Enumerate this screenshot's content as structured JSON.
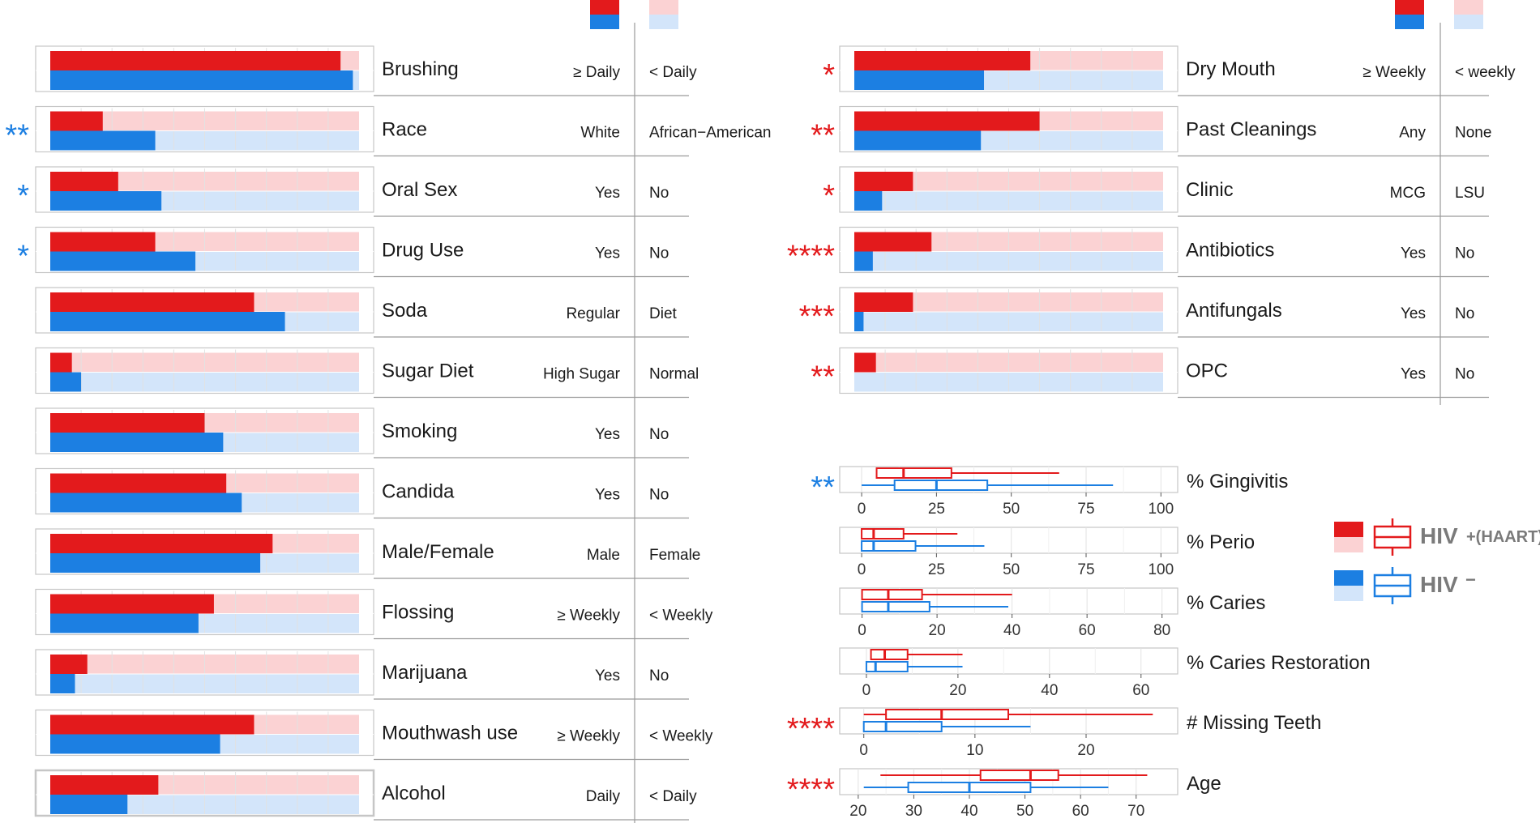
{
  "colors": {
    "hiv_pos_dark": "#e31a1c",
    "hiv_pos_light": "#fbd2d3",
    "hiv_neg_dark": "#1c7fe2",
    "hiv_neg_light": "#d3e5fa",
    "star_red": "#e31a1c",
    "star_blue": "#1c7fe2",
    "grid": "#e2e2e2",
    "frame": "#c6c6c6",
    "text": "#1a1a1a",
    "legend_text": "#7a7a7a"
  },
  "chart_data": [
    {
      "type": "bar",
      "panel": "categorical-left",
      "value_range": [
        0,
        1
      ],
      "series_names": [
        "HIV+(HAART)",
        "HIV-"
      ],
      "rows": [
        {
          "label": "Brushing",
          "level_a": "≥ Daily",
          "level_b": "< Daily",
          "hiv_pos": 0.94,
          "hiv_neg": 0.98,
          "stars": "",
          "star_color": ""
        },
        {
          "label": "Race",
          "level_a": "White",
          "level_b": "African−American",
          "hiv_pos": 0.17,
          "hiv_neg": 0.34,
          "stars": "**",
          "star_color": "blue"
        },
        {
          "label": "Oral Sex",
          "level_a": "Yes",
          "level_b": "No",
          "hiv_pos": 0.22,
          "hiv_neg": 0.36,
          "stars": "*",
          "star_color": "blue"
        },
        {
          "label": "Drug Use",
          "level_a": "Yes",
          "level_b": "No",
          "hiv_pos": 0.34,
          "hiv_neg": 0.47,
          "stars": "*",
          "star_color": "blue"
        },
        {
          "label": "Soda",
          "level_a": "Regular",
          "level_b": "Diet",
          "hiv_pos": 0.66,
          "hiv_neg": 0.76,
          "stars": "",
          "star_color": ""
        },
        {
          "label": "Sugar Diet",
          "level_a": "High Sugar",
          "level_b": "Normal",
          "hiv_pos": 0.07,
          "hiv_neg": 0.1,
          "stars": "",
          "star_color": ""
        },
        {
          "label": "Smoking",
          "level_a": "Yes",
          "level_b": "No",
          "hiv_pos": 0.5,
          "hiv_neg": 0.56,
          "stars": "",
          "star_color": ""
        },
        {
          "label": "Candida",
          "level_a": "Yes",
          "level_b": "No",
          "hiv_pos": 0.57,
          "hiv_neg": 0.62,
          "stars": "",
          "star_color": ""
        },
        {
          "label": "Male/Female",
          "level_a": "Male",
          "level_b": "Female",
          "hiv_pos": 0.72,
          "hiv_neg": 0.68,
          "stars": "",
          "star_color": ""
        },
        {
          "label": "Flossing",
          "level_a": "≥ Weekly",
          "level_b": "< Weekly",
          "hiv_pos": 0.53,
          "hiv_neg": 0.48,
          "stars": "",
          "star_color": ""
        },
        {
          "label": "Marijuana",
          "level_a": "Yes",
          "level_b": "No",
          "hiv_pos": 0.12,
          "hiv_neg": 0.08,
          "stars": "",
          "star_color": ""
        },
        {
          "label": "Mouthwash use",
          "level_a": "≥ Weekly",
          "level_b": "< Weekly",
          "hiv_pos": 0.66,
          "hiv_neg": 0.55,
          "stars": "",
          "star_color": ""
        },
        {
          "label": "Alcohol",
          "level_a": "Daily",
          "level_b": "< Daily",
          "hiv_pos": 0.35,
          "hiv_neg": 0.25,
          "stars": "",
          "star_color": ""
        }
      ]
    },
    {
      "type": "bar",
      "panel": "categorical-right",
      "value_range": [
        0,
        1
      ],
      "series_names": [
        "HIV+(HAART)",
        "HIV-"
      ],
      "rows": [
        {
          "label": "Dry Mouth",
          "level_a": "≥ Weekly",
          "level_b": "< weekly",
          "hiv_pos": 0.57,
          "hiv_neg": 0.42,
          "stars": "*",
          "star_color": "red"
        },
        {
          "label": "Past Cleanings",
          "level_a": "Any",
          "level_b": "None",
          "hiv_pos": 0.6,
          "hiv_neg": 0.41,
          "stars": "**",
          "star_color": "red"
        },
        {
          "label": "Clinic",
          "level_a": "MCG",
          "level_b": "LSU",
          "hiv_pos": 0.19,
          "hiv_neg": 0.09,
          "stars": "*",
          "star_color": "red"
        },
        {
          "label": "Antibiotics",
          "level_a": "Yes",
          "level_b": "No",
          "hiv_pos": 0.25,
          "hiv_neg": 0.06,
          "stars": "****",
          "star_color": "red"
        },
        {
          "label": "Antifungals",
          "level_a": "Yes",
          "level_b": "No",
          "hiv_pos": 0.19,
          "hiv_neg": 0.03,
          "stars": "***",
          "star_color": "red"
        },
        {
          "label": "OPC",
          "level_a": "Yes",
          "level_b": "No",
          "hiv_pos": 0.07,
          "hiv_neg": 0.0,
          "stars": "**",
          "star_color": "red"
        }
      ]
    },
    {
      "type": "box",
      "panel": "continuous",
      "series_names": [
        "HIV+(HAART)",
        "HIV-"
      ],
      "rows": [
        {
          "label": "% Gingivitis",
          "stars": "**",
          "star_color": "blue",
          "xlim": [
            -3,
            101
          ],
          "ticks": [
            0,
            25,
            50,
            75,
            100
          ],
          "hiv_pos": {
            "min": 5,
            "q1": 5,
            "median": 14,
            "q3": 30,
            "max": 66
          },
          "hiv_neg": {
            "min": 0,
            "q1": 11,
            "median": 25,
            "q3": 42,
            "max": 84
          }
        },
        {
          "label": "% Perio",
          "stars": "",
          "star_color": "",
          "xlim": [
            -3,
            101
          ],
          "ticks": [
            0,
            25,
            50,
            75,
            100
          ],
          "hiv_pos": {
            "min": 0,
            "q1": 0,
            "median": 4,
            "q3": 14,
            "max": 32
          },
          "hiv_neg": {
            "min": 0,
            "q1": 0,
            "median": 4,
            "q3": 18,
            "max": 41
          }
        },
        {
          "label": "% Caries",
          "stars": "",
          "star_color": "",
          "xlim": [
            -2.5,
            80.5
          ],
          "ticks": [
            0,
            20,
            40,
            60,
            80
          ],
          "hiv_pos": {
            "min": 0,
            "q1": 0,
            "median": 7,
            "q3": 16,
            "max": 40
          },
          "hiv_neg": {
            "min": 0,
            "q1": 0,
            "median": 7,
            "q3": 18,
            "max": 39
          }
        },
        {
          "label": "% Caries Restoration",
          "stars": "",
          "star_color": "",
          "xlim": [
            -3,
            65
          ],
          "ticks": [
            0,
            20,
            40,
            60
          ],
          "hiv_pos": {
            "min": 1,
            "q1": 1,
            "median": 4,
            "q3": 9,
            "max": 21
          },
          "hiv_neg": {
            "min": 0,
            "q1": 0,
            "median": 2,
            "q3": 9,
            "max": 21
          }
        },
        {
          "label": "# Missing Teeth",
          "stars": "****",
          "star_color": "red",
          "xlim": [
            -1,
            27
          ],
          "ticks": [
            0,
            10,
            20
          ],
          "hiv_pos": {
            "min": 0,
            "q1": 2,
            "median": 7,
            "q3": 13,
            "max": 26
          },
          "hiv_neg": {
            "min": 0,
            "q1": 0,
            "median": 2,
            "q3": 7,
            "max": 15
          }
        },
        {
          "label": "Age",
          "stars": "****",
          "star_color": "red",
          "xlim": [
            19,
            75
          ],
          "ticks": [
            20,
            30,
            40,
            50,
            60,
            70
          ],
          "hiv_pos": {
            "min": 24,
            "q1": 42,
            "median": 51,
            "q3": 56,
            "max": 72
          },
          "hiv_neg": {
            "min": 21,
            "q1": 29,
            "median": 40,
            "q3": 51,
            "max": 65
          }
        }
      ]
    }
  ],
  "legend": {
    "pos_main": "HIV",
    "pos_sup": "+(HAART)",
    "neg_main": "HIV",
    "neg_sup": "−"
  }
}
